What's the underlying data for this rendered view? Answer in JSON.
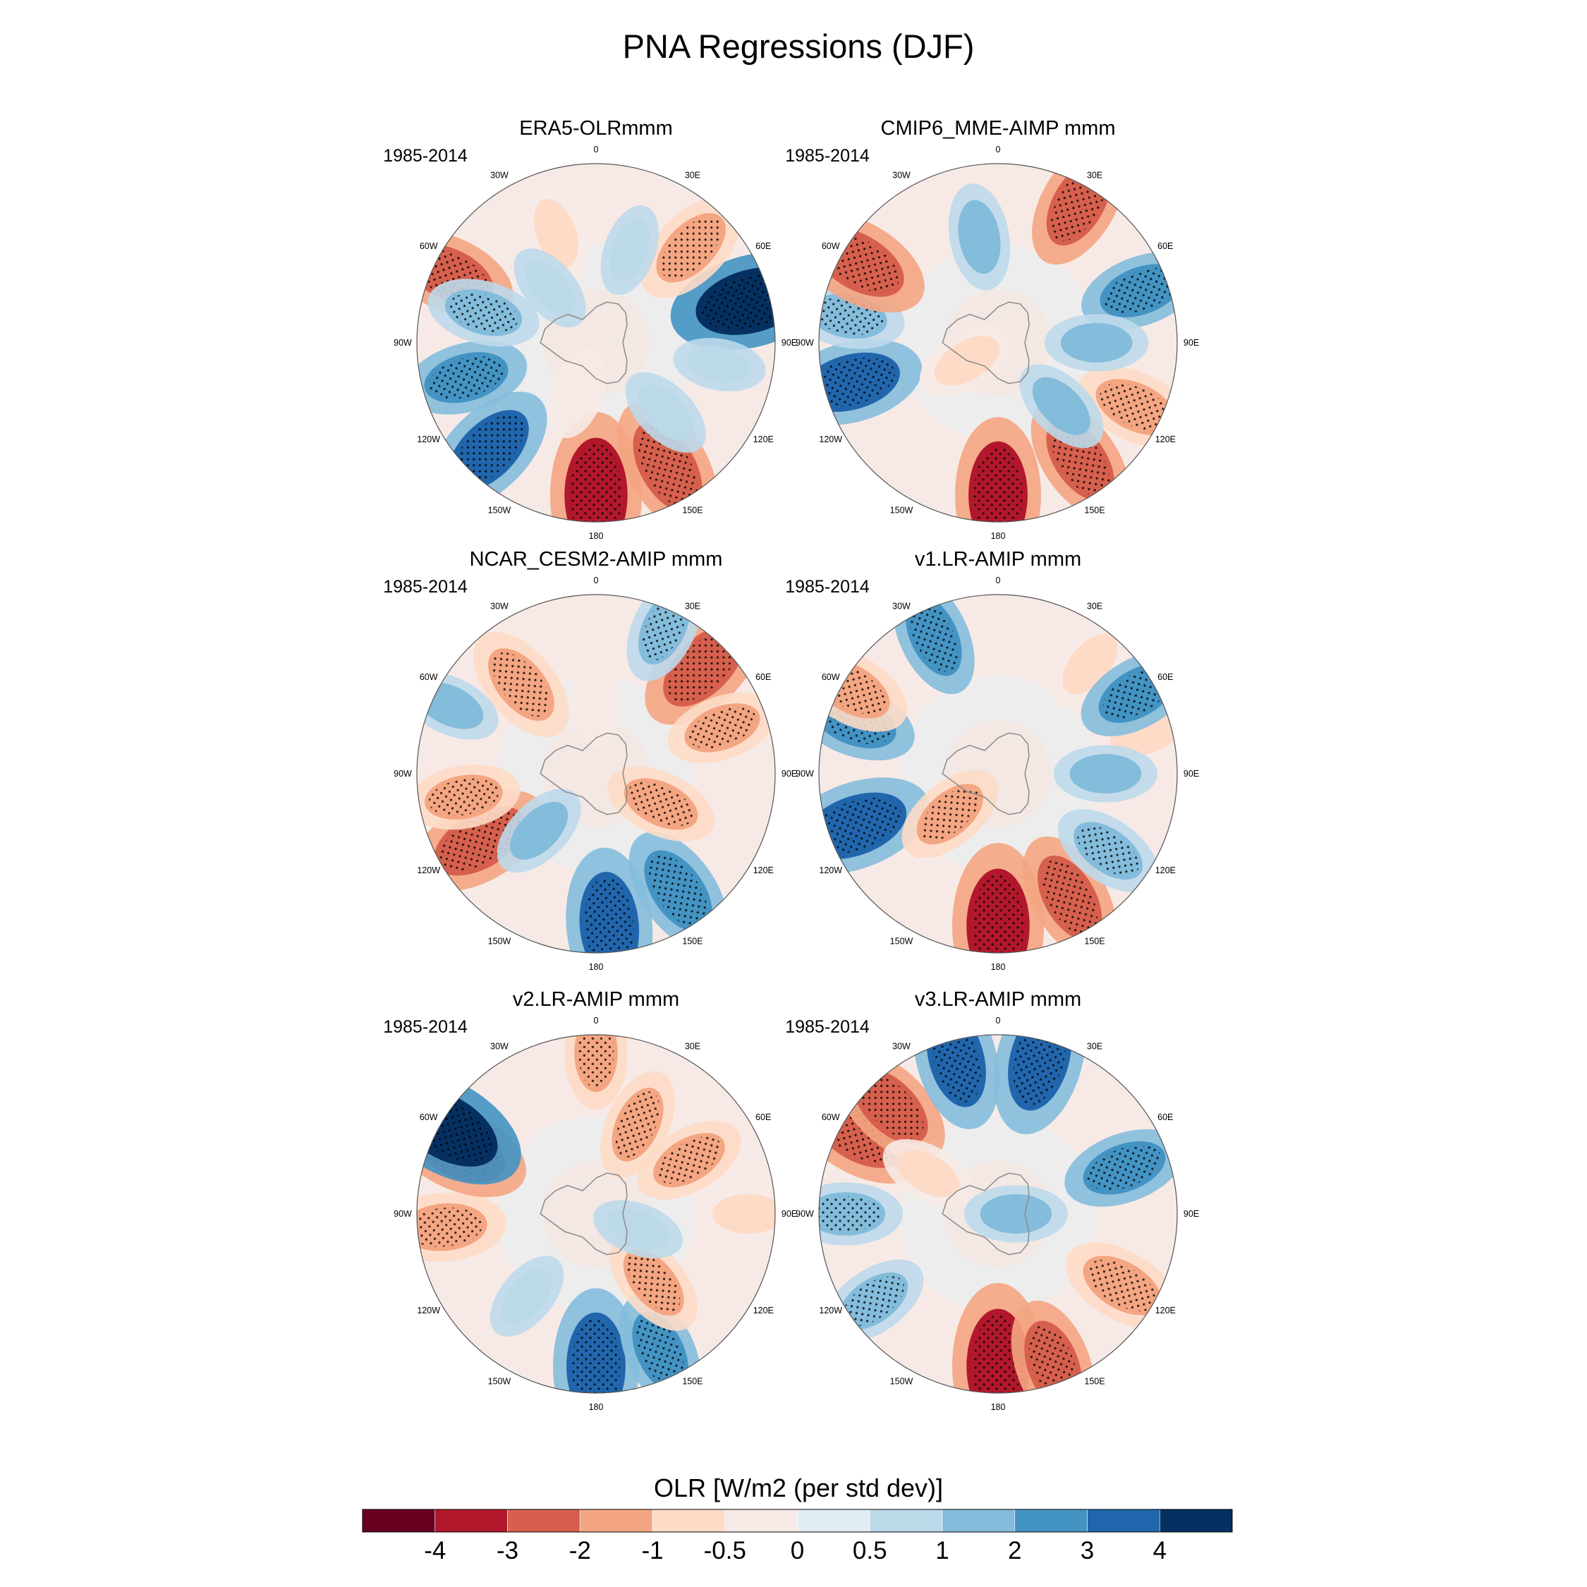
{
  "title": "PNA Regressions (DJF)",
  "chart_data": {
    "type": "heatmap",
    "projection": "south-polar-stereographic",
    "title": "PNA Regressions (DJF)",
    "variable": "OLR",
    "units_label": "OLR [W/m2 (per std dev)]",
    "period": "1985-2014",
    "longitude_labels": [
      "0",
      "30E",
      "60E",
      "90E",
      "120E",
      "150E",
      "180",
      "150W",
      "120W",
      "90W",
      "60W",
      "30W"
    ],
    "colorbar": {
      "levels": [
        "-4",
        "-3",
        "-2",
        "-1",
        "-0.5",
        "0",
        "0.5",
        "1",
        "2",
        "3",
        "4"
      ],
      "colors": [
        "#67001f",
        "#b2182b",
        "#d6604d",
        "#f4a582",
        "#fddbc7",
        "#f7eae6",
        "#e2ecf3",
        "#bcd9ea",
        "#84bcdb",
        "#4393c3",
        "#2166ac",
        "#053061"
      ]
    },
    "panels": [
      {
        "label": "ERA5-OLRmmm",
        "period": "1985-2014",
        "features": [
          {
            "lon": 180,
            "r": 0.85,
            "value": -4
          },
          {
            "lon": 150,
            "r": 0.8,
            "value": -3
          },
          {
            "lon": 135,
            "r": 0.55,
            "value": 0.8
          },
          {
            "lon": 225,
            "r": 0.85,
            "value": 3
          },
          {
            "lon": 255,
            "r": 0.75,
            "value": 2
          },
          {
            "lon": 295,
            "r": 0.9,
            "value": -2.5
          },
          {
            "lon": 285,
            "r": 0.65,
            "value": 1.5
          },
          {
            "lon": 75,
            "r": 0.9,
            "value": 4
          },
          {
            "lon": 45,
            "r": 0.75,
            "value": -2
          },
          {
            "lon": 340,
            "r": 0.65,
            "value": -1
          },
          {
            "lon": 20,
            "r": 0.55,
            "value": 0.5
          },
          {
            "lon": 100,
            "r": 0.7,
            "value": 0.5
          },
          {
            "lon": 200,
            "r": 0.3,
            "value": -0.5
          },
          {
            "lon": 320,
            "r": 0.4,
            "value": 0.5
          }
        ]
      },
      {
        "label": "CMIP6_MME-AIMP  mmm",
        "period": "1985-2014",
        "features": [
          {
            "lon": 180,
            "r": 0.85,
            "value": -3.5
          },
          {
            "lon": 145,
            "r": 0.8,
            "value": -2.5
          },
          {
            "lon": 115,
            "r": 0.85,
            "value": -2
          },
          {
            "lon": 255,
            "r": 0.85,
            "value": 3
          },
          {
            "lon": 280,
            "r": 0.85,
            "value": 1.5
          },
          {
            "lon": 300,
            "r": 0.9,
            "value": -3
          },
          {
            "lon": 70,
            "r": 0.85,
            "value": 2
          },
          {
            "lon": 30,
            "r": 0.9,
            "value": -2.5
          },
          {
            "lon": 350,
            "r": 0.6,
            "value": 1.2
          },
          {
            "lon": 90,
            "r": 0.55,
            "value": 1
          },
          {
            "lon": 240,
            "r": 0.2,
            "value": -1
          },
          {
            "lon": 135,
            "r": 0.5,
            "value": 1
          }
        ]
      },
      {
        "label": "NCAR_CESM2-AMIP  mmm",
        "period": "1985-2014",
        "features": [
          {
            "lon": 175,
            "r": 0.85,
            "value": 3.5
          },
          {
            "lon": 145,
            "r": 0.8,
            "value": 2.5
          },
          {
            "lon": 240,
            "r": 0.75,
            "value": -3
          },
          {
            "lon": 260,
            "r": 0.75,
            "value": -1.5
          },
          {
            "lon": 320,
            "r": 0.65,
            "value": -2
          },
          {
            "lon": 45,
            "r": 0.85,
            "value": -3
          },
          {
            "lon": 70,
            "r": 0.75,
            "value": -1.5
          },
          {
            "lon": 25,
            "r": 0.9,
            "value": 1.5
          },
          {
            "lon": 295,
            "r": 0.9,
            "value": 1
          },
          {
            "lon": 225,
            "r": 0.45,
            "value": 1
          },
          {
            "lon": 115,
            "r": 0.4,
            "value": -1.5
          },
          {
            "lon": 0,
            "r": 0.4,
            "value": -0.5
          }
        ]
      },
      {
        "label": "v1.LR-AMIP  mmm",
        "period": "1985-2014",
        "features": [
          {
            "lon": 180,
            "r": 0.85,
            "value": -4
          },
          {
            "lon": 150,
            "r": 0.8,
            "value": -2.5
          },
          {
            "lon": 125,
            "r": 0.75,
            "value": 1.5
          },
          {
            "lon": 250,
            "r": 0.85,
            "value": 3.5
          },
          {
            "lon": 290,
            "r": 0.85,
            "value": 2
          },
          {
            "lon": 300,
            "r": 0.95,
            "value": -2
          },
          {
            "lon": 335,
            "r": 0.85,
            "value": 2
          },
          {
            "lon": 40,
            "r": 0.8,
            "value": -1
          },
          {
            "lon": 75,
            "r": 0.85,
            "value": -1
          },
          {
            "lon": 60,
            "r": 0.9,
            "value": 2
          },
          {
            "lon": 230,
            "r": 0.35,
            "value": -1.5
          },
          {
            "lon": 90,
            "r": 0.6,
            "value": 1
          }
        ]
      },
      {
        "label": "v2.LR-AMIP  mmm",
        "period": "1985-2014",
        "features": [
          {
            "lon": 180,
            "r": 0.85,
            "value": 3.5
          },
          {
            "lon": 155,
            "r": 0.85,
            "value": 2
          },
          {
            "lon": 140,
            "r": 0.5,
            "value": -1.5
          },
          {
            "lon": 265,
            "r": 0.85,
            "value": -2
          },
          {
            "lon": 295,
            "r": 0.85,
            "value": -3
          },
          {
            "lon": 300,
            "r": 0.97,
            "value": 4
          },
          {
            "lon": 25,
            "r": 0.55,
            "value": -1.5
          },
          {
            "lon": 60,
            "r": 0.6,
            "value": -1.5
          },
          {
            "lon": 0,
            "r": 0.9,
            "value": -1.5
          },
          {
            "lon": 90,
            "r": 0.85,
            "value": -1
          },
          {
            "lon": 220,
            "r": 0.6,
            "value": 0.6
          },
          {
            "lon": 110,
            "r": 0.25,
            "value": 0.5
          }
        ]
      },
      {
        "label": "v3.LR-AMIP  mmm",
        "period": "1985-2014",
        "features": [
          {
            "lon": 180,
            "r": 0.85,
            "value": -4
          },
          {
            "lon": 160,
            "r": 0.9,
            "value": -2.5
          },
          {
            "lon": 120,
            "r": 0.8,
            "value": -2
          },
          {
            "lon": 235,
            "r": 0.85,
            "value": 1.5
          },
          {
            "lon": 270,
            "r": 0.85,
            "value": 1.5
          },
          {
            "lon": 300,
            "r": 0.9,
            "value": -3
          },
          {
            "lon": 315,
            "r": 0.85,
            "value": -2.5
          },
          {
            "lon": 15,
            "r": 0.9,
            "value": 3.5
          },
          {
            "lon": 345,
            "r": 0.9,
            "value": 3
          },
          {
            "lon": 70,
            "r": 0.75,
            "value": 2
          },
          {
            "lon": 90,
            "r": 0.1,
            "value": 1
          },
          {
            "lon": 300,
            "r": 0.45,
            "value": -0.8
          }
        ]
      }
    ]
  }
}
